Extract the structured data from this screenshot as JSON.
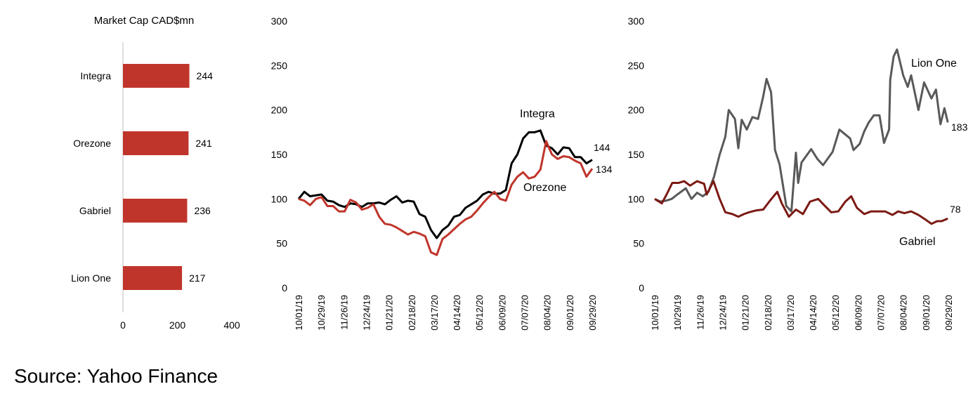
{
  "source": "Source: Yahoo Finance",
  "chart_data": [
    {
      "type": "bar",
      "orientation": "horizontal",
      "title": "Market Cap CAD$mn",
      "categories": [
        "Integra",
        "Orezone",
        "Gabriel",
        "Lion One"
      ],
      "values": [
        244,
        241,
        236,
        217
      ],
      "xlim": [
        0,
        400
      ],
      "xticks": [
        "0",
        "200",
        "400"
      ],
      "color": "#c0352b"
    },
    {
      "type": "line",
      "ylim": [
        0,
        300
      ],
      "yticks": [
        "0",
        "50",
        "100",
        "150",
        "200",
        "250",
        "300"
      ],
      "xticks": [
        "10/01/19",
        "10/29/19",
        "11/26/19",
        "12/24/19",
        "01/21/20",
        "02/18/20",
        "03/17/20",
        "04/14/20",
        "05/12/20",
        "06/09/20",
        "07/07/20",
        "08/04/20",
        "09/01/20",
        "09/29/20"
      ],
      "xlim_weeks": [
        0,
        52
      ],
      "series": [
        {
          "name": "Integra",
          "last_label": "144",
          "color": "#000000",
          "values": [
            100,
            108,
            103,
            104,
            105,
            98,
            97,
            93,
            91,
            95,
            94,
            91,
            95,
            95,
            96,
            94,
            99,
            103,
            96,
            98,
            97,
            83,
            80,
            65,
            56,
            65,
            70,
            80,
            82,
            90,
            94,
            98,
            105,
            108,
            106,
            106,
            110,
            140,
            150,
            168,
            175,
            175,
            177,
            160,
            157,
            150,
            158,
            157,
            147,
            147,
            140,
            144
          ]
        },
        {
          "name": "Orezone",
          "last_label": "134",
          "color": "#c0352b",
          "values": [
            100,
            98,
            93,
            100,
            102,
            92,
            92,
            86,
            86,
            99,
            96,
            88,
            90,
            94,
            80,
            72,
            71,
            68,
            64,
            60,
            63,
            61,
            58,
            40,
            37,
            55,
            60,
            66,
            72,
            77,
            80,
            87,
            95,
            102,
            108,
            100,
            98,
            116,
            125,
            130,
            123,
            125,
            133,
            165,
            150,
            145,
            148,
            147,
            143,
            140,
            125,
            134
          ]
        }
      ]
    },
    {
      "type": "line",
      "ylim": [
        0,
        300
      ],
      "yticks": [
        "0",
        "50",
        "100",
        "150",
        "200",
        "250",
        "300"
      ],
      "xticks": [
        "10/01/19",
        "10/29/19",
        "11/26/19",
        "12/24/19",
        "01/21/20",
        "02/18/20",
        "03/17/20",
        "04/14/20",
        "05/12/20",
        "06/09/20",
        "07/07/20",
        "08/04/20",
        "09/01/20",
        "09/29/20"
      ],
      "xlim_weeks": [
        0,
        52
      ],
      "series": [
        {
          "name": "Lion One",
          "last_label": "183",
          "color": "#595959",
          "points": [
            [
              0,
              100
            ],
            [
              1,
              97
            ],
            [
              2,
              98
            ],
            [
              3,
              100
            ],
            [
              4,
              105
            ],
            [
              5.5,
              112
            ],
            [
              6.5,
              100
            ],
            [
              7.5,
              107
            ],
            [
              8.5,
              103
            ],
            [
              9.5,
              108
            ],
            [
              10.5,
              125
            ],
            [
              11.5,
              150
            ],
            [
              12.5,
              170
            ],
            [
              13.1,
              200
            ],
            [
              14.2,
              190
            ],
            [
              14.8,
              157
            ],
            [
              15.4,
              189
            ],
            [
              16.3,
              178
            ],
            [
              17.3,
              192
            ],
            [
              18.3,
              190
            ],
            [
              19.2,
              215
            ],
            [
              19.8,
              235
            ],
            [
              20.6,
              220
            ],
            [
              21.3,
              155
            ],
            [
              22.1,
              139
            ],
            [
              23.3,
              92
            ],
            [
              24.2,
              86
            ],
            [
              25,
              152
            ],
            [
              25.4,
              118
            ],
            [
              26,
              141
            ],
            [
              27.7,
              156
            ],
            [
              28.8,
              145
            ],
            [
              29.8,
              138
            ],
            [
              31.5,
              153
            ],
            [
              32.7,
              178
            ],
            [
              34.6,
              168
            ],
            [
              35.2,
              155
            ],
            [
              36.3,
              162
            ],
            [
              37.1,
              176
            ],
            [
              37.9,
              186
            ],
            [
              38.8,
              194
            ],
            [
              39.8,
              194
            ],
            [
              40.6,
              163
            ],
            [
              41.5,
              178
            ],
            [
              41.7,
              234
            ],
            [
              42.3,
              260
            ],
            [
              42.9,
              268
            ],
            [
              44,
              239
            ],
            [
              44.8,
              226
            ],
            [
              45.4,
              239
            ],
            [
              46.7,
              200
            ],
            [
              47.7,
              231
            ],
            [
              49,
              213
            ],
            [
              49.8,
              223
            ],
            [
              50.6,
              184
            ],
            [
              51.3,
              202
            ],
            [
              51.9,
              186
            ]
          ]
        },
        {
          "name": "Gabriel",
          "last_label": "78",
          "color": "#7b1a14",
          "points": [
            [
              0,
              100
            ],
            [
              1.25,
              95
            ],
            [
              2.1,
              105
            ],
            [
              3.1,
              118
            ],
            [
              4.2,
              118
            ],
            [
              5.2,
              120
            ],
            [
              6.25,
              115
            ],
            [
              7.5,
              120
            ],
            [
              8.75,
              117
            ],
            [
              9.2,
              105
            ],
            [
              10.4,
              120
            ],
            [
              11.5,
              100
            ],
            [
              12.5,
              85
            ],
            [
              13.75,
              83
            ],
            [
              14.8,
              80
            ],
            [
              15.8,
              83
            ],
            [
              16.7,
              85
            ],
            [
              17.9,
              87
            ],
            [
              19.2,
              88
            ],
            [
              20.4,
              98
            ],
            [
              21.7,
              108
            ],
            [
              22.5,
              95
            ],
            [
              23.75,
              80
            ],
            [
              25,
              88
            ],
            [
              26.25,
              83
            ],
            [
              27.5,
              97
            ],
            [
              28.95,
              100
            ],
            [
              30,
              93
            ],
            [
              31.25,
              85
            ],
            [
              32.5,
              86
            ],
            [
              33.75,
              97
            ],
            [
              34.8,
              103
            ],
            [
              35.8,
              90
            ],
            [
              37.1,
              83
            ],
            [
              38.3,
              86
            ],
            [
              39.6,
              86
            ],
            [
              40.8,
              86
            ],
            [
              42.1,
              82
            ],
            [
              43.1,
              86
            ],
            [
              44.2,
              84
            ],
            [
              45.4,
              86
            ],
            [
              46.7,
              82
            ],
            [
              47.9,
              77
            ],
            [
              49,
              72
            ],
            [
              50,
              75
            ],
            [
              50.8,
              75
            ],
            [
              51.9,
              78
            ]
          ]
        }
      ]
    }
  ]
}
